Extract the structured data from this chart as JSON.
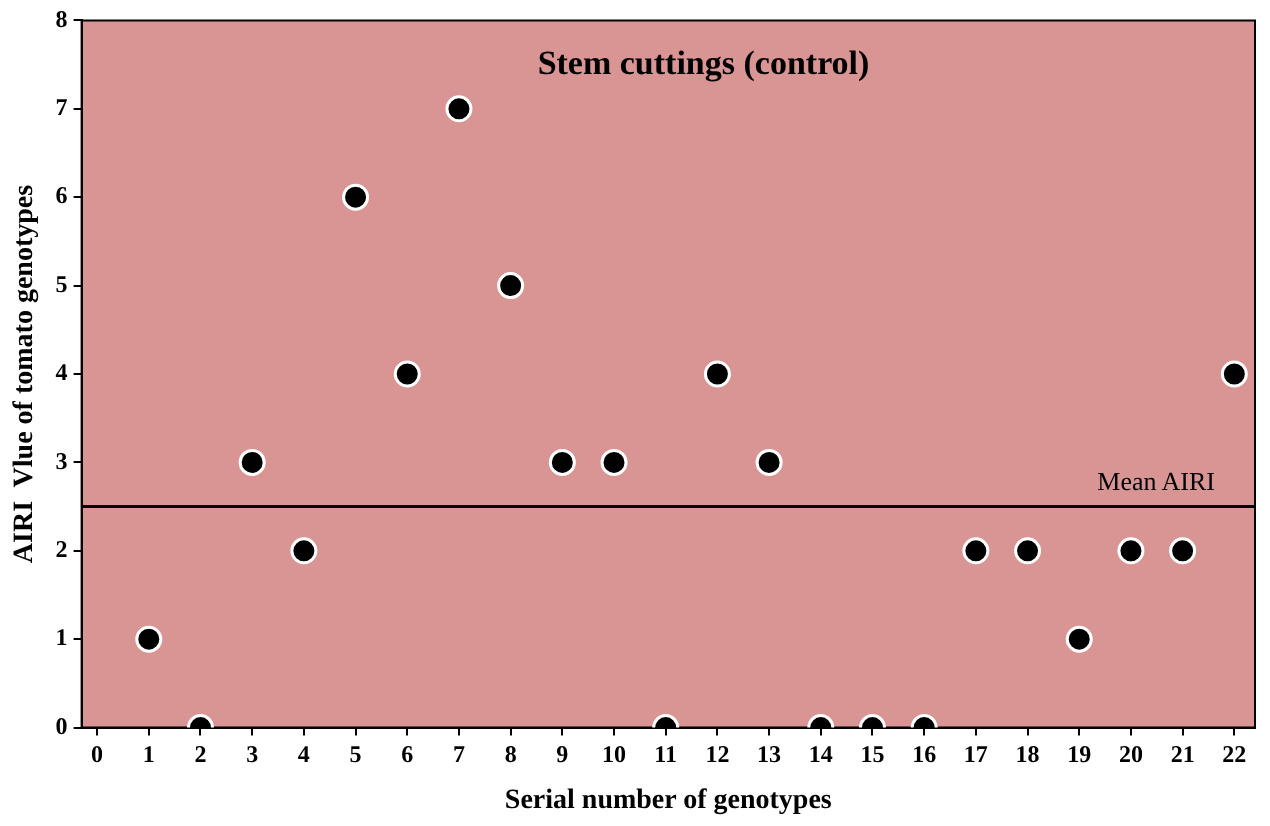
{
  "chart_data": {
    "type": "scatter",
    "title": "Stem cuttings (control)",
    "xlabel": "Serial number of genotypes",
    "ylabel": "AIRI  Vlue of tomato genotypes",
    "x": [
      1,
      2,
      3,
      4,
      5,
      6,
      7,
      8,
      9,
      10,
      11,
      12,
      13,
      14,
      15,
      16,
      17,
      18,
      19,
      20,
      21,
      22
    ],
    "series": [
      {
        "color": "#000000",
        "values": [
          1,
          0,
          3,
          2,
          6,
          4,
          7,
          5,
          3,
          3,
          0,
          4,
          3,
          0,
          0,
          0,
          2,
          2,
          1,
          2,
          2,
          4
        ]
      }
    ],
    "xlim": [
      -0.3,
      22.4
    ],
    "xticks": [
      0,
      1,
      2,
      3,
      4,
      5,
      6,
      7,
      8,
      9,
      10,
      11,
      12,
      13,
      14,
      15,
      16,
      17,
      18,
      19,
      20,
      21,
      22
    ],
    "ylim": [
      0,
      8
    ],
    "yticks": [
      0,
      1,
      2,
      3,
      4,
      5,
      6,
      7,
      8
    ],
    "ref_lines": [
      {
        "axis": "y",
        "value": 2.5,
        "label": "Mean AIRI",
        "color": "#000000"
      }
    ],
    "marker": "circle",
    "grid": false,
    "legend": false
  }
}
